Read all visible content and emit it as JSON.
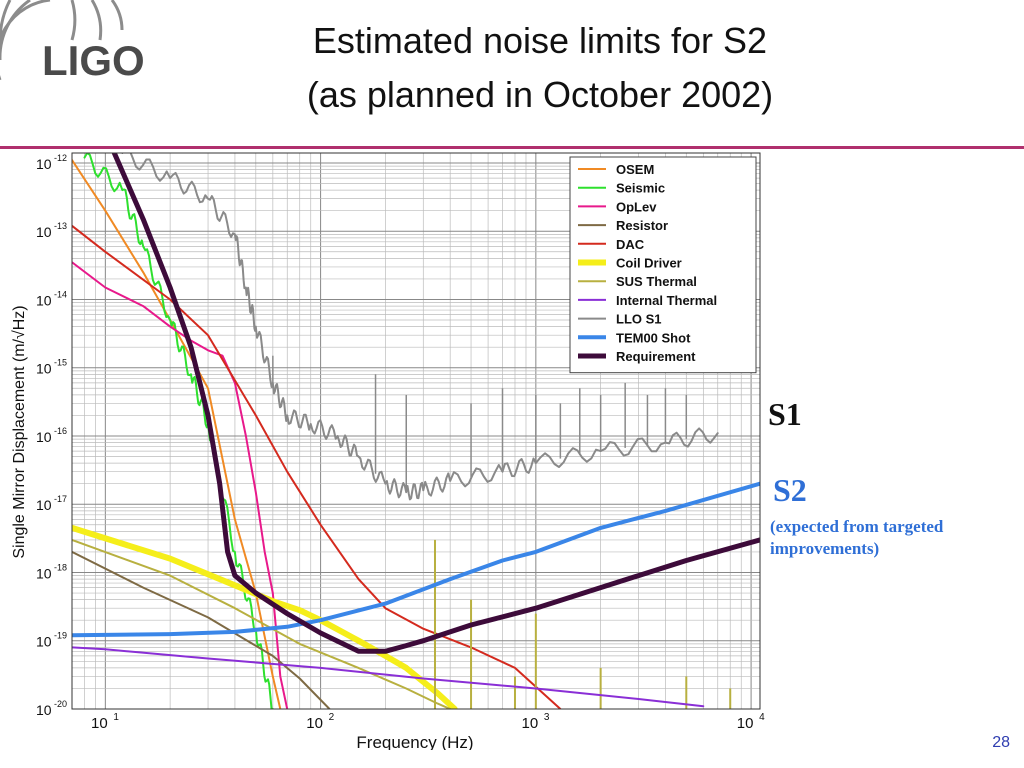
{
  "slide": {
    "logo_text": "LIGO",
    "title_line1": "Estimated noise limits for S2",
    "title_line2": "(as planned in October 2002)",
    "annotation_s1": "S1",
    "annotation_s2": "S2",
    "annotation_s2_note_line1": "(expected from targeted",
    "annotation_s2_note_line2": "improvements)",
    "page_number": "28",
    "accent_color": "#b0306e"
  },
  "chart_data": {
    "type": "line",
    "scale": "log-log",
    "xlabel": "Frequency (Hz)",
    "ylabel": "Single Mirror Displacement (m/√Hz)",
    "xlim": [
      7,
      11000
    ],
    "ylim": [
      1e-20,
      1.4e-12
    ],
    "x_ticks": [
      {
        "value": 10,
        "base": "10",
        "exp": "1"
      },
      {
        "value": 100,
        "base": "10",
        "exp": "2"
      },
      {
        "value": 1000,
        "base": "10",
        "exp": "3"
      },
      {
        "value": 10000,
        "base": "10",
        "exp": "4"
      }
    ],
    "y_ticks": [
      {
        "value": 1e-12,
        "base": "10",
        "exp": "-12"
      },
      {
        "value": 1e-13,
        "base": "10",
        "exp": "-13"
      },
      {
        "value": 1e-14,
        "base": "10",
        "exp": "-14"
      },
      {
        "value": 1e-15,
        "base": "10",
        "exp": "-15"
      },
      {
        "value": 1e-16,
        "base": "10",
        "exp": "-16"
      },
      {
        "value": 1e-17,
        "base": "10",
        "exp": "-17"
      },
      {
        "value": 1e-18,
        "base": "10",
        "exp": "-18"
      },
      {
        "value": 1e-19,
        "base": "10",
        "exp": "-19"
      },
      {
        "value": 1e-20,
        "base": "10",
        "exp": "-20"
      }
    ],
    "grid": true,
    "legend_position": "top-right",
    "series": [
      {
        "name": "OSEM",
        "color": "#f08a24",
        "width": 2,
        "points": [
          [
            7,
            1.1e-12
          ],
          [
            10,
            2e-13
          ],
          [
            15,
            2.5e-14
          ],
          [
            20,
            5e-15
          ],
          [
            30,
            5e-16
          ],
          [
            40,
            6e-18
          ],
          [
            50,
            5e-19
          ],
          [
            60,
            3e-20
          ],
          [
            65,
            1e-20
          ]
        ]
      },
      {
        "name": "Seismic",
        "color": "#2ee02e",
        "width": 2,
        "jitter": true,
        "points": [
          [
            8,
            1.2e-12
          ],
          [
            12,
            4e-13
          ],
          [
            15,
            6e-14
          ],
          [
            20,
            5e-15
          ],
          [
            25,
            8e-16
          ],
          [
            30,
            1.5e-16
          ],
          [
            40,
            2e-18
          ],
          [
            50,
            1.5e-19
          ],
          [
            60,
            1e-20
          ]
        ]
      },
      {
        "name": "OpLev",
        "color": "#e8198b",
        "width": 2,
        "points": [
          [
            7,
            3.5e-14
          ],
          [
            10,
            1.5e-14
          ],
          [
            15,
            8e-15
          ],
          [
            20,
            4e-15
          ],
          [
            25,
            2.5e-15
          ],
          [
            30,
            1.8e-15
          ],
          [
            35,
            1.5e-15
          ],
          [
            40,
            6e-16
          ],
          [
            45,
            1e-16
          ],
          [
            50,
            1.5e-17
          ],
          [
            55,
            2e-18
          ],
          [
            60,
            5e-19
          ],
          [
            65,
            3e-20
          ],
          [
            70,
            1e-20
          ]
        ]
      },
      {
        "name": "Resistor",
        "color": "#7e6a44",
        "width": 2,
        "points": [
          [
            7,
            2e-18
          ],
          [
            15,
            6e-19
          ],
          [
            30,
            2.2e-19
          ],
          [
            60,
            6e-20
          ],
          [
            80,
            2.8e-20
          ],
          [
            110,
            1e-20
          ]
        ]
      },
      {
        "name": "DAC",
        "color": "#d42a1e",
        "width": 2,
        "points": [
          [
            7,
            1.2e-13
          ],
          [
            10,
            5e-14
          ],
          [
            20,
            1e-14
          ],
          [
            30,
            3e-15
          ],
          [
            50,
            2e-16
          ],
          [
            70,
            3e-17
          ],
          [
            100,
            5e-18
          ],
          [
            150,
            8e-19
          ],
          [
            200,
            3e-19
          ],
          [
            300,
            1.5e-19
          ],
          [
            500,
            8e-20
          ],
          [
            800,
            4e-20
          ],
          [
            1300,
            1e-20
          ]
        ]
      },
      {
        "name": "Coil Driver",
        "color": "#f5ee1a",
        "width": 6,
        "points": [
          [
            7,
            4.5e-18
          ],
          [
            20,
            1.6e-18
          ],
          [
            40,
            6.5e-19
          ],
          [
            60,
            3.8e-19
          ],
          [
            80,
            2.8e-19
          ],
          [
            100,
            2e-19
          ],
          [
            150,
            1e-19
          ],
          [
            200,
            6e-20
          ],
          [
            250,
            4e-20
          ],
          [
            300,
            2.5e-20
          ],
          [
            350,
            1.7e-20
          ],
          [
            420,
            1e-20
          ]
        ]
      },
      {
        "name": "SUS Thermal",
        "color": "#b8b040",
        "width": 2,
        "points": [
          [
            7,
            3e-18
          ],
          [
            20,
            9e-19
          ],
          [
            40,
            3e-19
          ],
          [
            80,
            9e-20
          ],
          [
            150,
            4e-20
          ],
          [
            250,
            2e-20
          ],
          [
            350,
            1.2e-20
          ],
          [
            400,
            1e-20
          ]
        ],
        "peaks": [
          [
            340,
            3e-18
          ],
          [
            500,
            4e-19
          ],
          [
            800,
            3e-20
          ],
          [
            1000,
            2.5e-19
          ],
          [
            2000,
            4e-20
          ],
          [
            5000,
            3e-20
          ],
          [
            8000,
            2e-20
          ]
        ]
      },
      {
        "name": "Internal Thermal",
        "color": "#8a2fd6",
        "width": 2,
        "points": [
          [
            7,
            8e-20
          ],
          [
            10,
            7.5e-20
          ],
          [
            30,
            5.5e-20
          ],
          [
            100,
            4e-20
          ],
          [
            300,
            2.8e-20
          ],
          [
            1000,
            2e-20
          ],
          [
            3000,
            1.4e-20
          ],
          [
            6000,
            1.1e-20
          ]
        ]
      },
      {
        "name": "LLO S1",
        "color": "#8a8a8a",
        "width": 2,
        "jitter": true,
        "points": [
          [
            12,
            1.4e-12
          ],
          [
            20,
            6e-13
          ],
          [
            30,
            3e-13
          ],
          [
            40,
            9e-14
          ],
          [
            45,
            1.5e-14
          ],
          [
            50,
            4e-15
          ],
          [
            60,
            6e-16
          ],
          [
            70,
            2e-16
          ],
          [
            90,
            1.5e-16
          ],
          [
            120,
            1e-16
          ],
          [
            150,
            5e-17
          ],
          [
            200,
            2e-17
          ],
          [
            250,
            1.5e-17
          ],
          [
            300,
            1.6e-17
          ],
          [
            400,
            2.2e-17
          ],
          [
            700,
            3e-17
          ],
          [
            1000,
            4e-17
          ],
          [
            2000,
            6e-17
          ],
          [
            4000,
            8e-17
          ],
          [
            7000,
            1.1e-16
          ]
        ],
        "spikes": [
          [
            60,
            1.5e-15
          ],
          [
            180,
            8e-16
          ],
          [
            250,
            4e-16
          ],
          [
            500,
            3e-16
          ],
          [
            700,
            5e-16
          ],
          [
            1000,
            4e-16
          ],
          [
            1300,
            3e-16
          ],
          [
            1600,
            5e-16
          ],
          [
            2000,
            4e-16
          ],
          [
            2600,
            6e-16
          ],
          [
            3300,
            4e-16
          ],
          [
            4000,
            5e-16
          ],
          [
            5000,
            4e-16
          ]
        ]
      },
      {
        "name": "TEM00 Shot",
        "color": "#3a86e8",
        "width": 4,
        "points": [
          [
            7,
            1.2e-19
          ],
          [
            20,
            1.25e-19
          ],
          [
            40,
            1.35e-19
          ],
          [
            70,
            1.6e-19
          ],
          [
            100,
            2e-19
          ],
          [
            200,
            3.5e-19
          ],
          [
            400,
            8e-19
          ],
          [
            700,
            1.5e-18
          ],
          [
            1000,
            2e-18
          ],
          [
            2000,
            4.5e-18
          ],
          [
            4000,
            8e-18
          ],
          [
            11000,
            2e-17
          ]
        ]
      },
      {
        "name": "Requirement",
        "color": "#3d0b3a",
        "width": 5,
        "points": [
          [
            11,
            1.4e-12
          ],
          [
            15,
            1.5e-13
          ],
          [
            20,
            1.5e-14
          ],
          [
            25,
            2e-15
          ],
          [
            30,
            2e-16
          ],
          [
            34,
            2e-17
          ],
          [
            37,
            2e-18
          ],
          [
            40,
            9e-19
          ],
          [
            50,
            5e-19
          ],
          [
            70,
            2.5e-19
          ],
          [
            100,
            1.3e-19
          ],
          [
            150,
            7e-20
          ],
          [
            200,
            7e-20
          ],
          [
            250,
            8.5e-20
          ],
          [
            300,
            1e-19
          ],
          [
            500,
            1.7e-19
          ],
          [
            1000,
            3e-19
          ],
          [
            2000,
            6e-19
          ],
          [
            5000,
            1.5e-18
          ],
          [
            11000,
            3e-18
          ]
        ]
      }
    ]
  }
}
